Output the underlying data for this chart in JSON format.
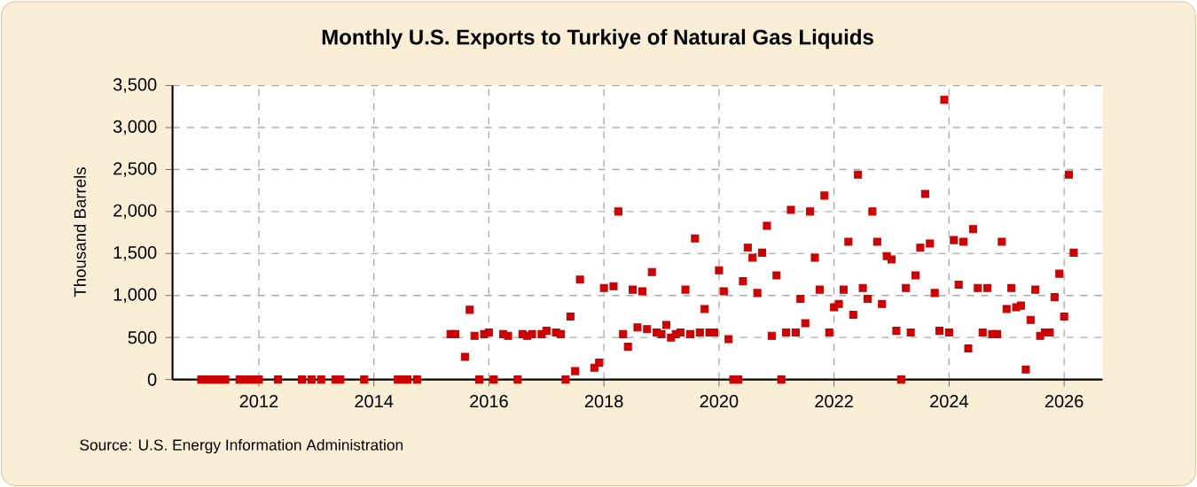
{
  "chart_data": {
    "type": "scatter",
    "title": "Monthly U.S. Exports to Turkiye of Natural Gas Liquids",
    "ylabel": "Thousand Barrels",
    "annotations": [
      "Source: U.S. Energy Information Administration"
    ],
    "x": [
      "2011-01",
      "2011-02",
      "2011-03",
      "2011-04",
      "2011-05",
      "2011-06",
      "2011-09",
      "2011-10",
      "2011-11",
      "2011-12",
      "2012-01",
      "2012-05",
      "2012-10",
      "2012-12",
      "2013-02",
      "2013-05",
      "2013-06",
      "2013-11",
      "2014-06",
      "2014-07",
      "2014-08",
      "2014-10",
      "2015-05",
      "2015-06",
      "2015-08",
      "2015-09",
      "2015-10",
      "2015-11",
      "2015-12",
      "2016-01",
      "2016-02",
      "2016-04",
      "2016-05",
      "2016-07",
      "2016-08",
      "2016-09",
      "2016-10",
      "2016-12",
      "2017-01",
      "2017-03",
      "2017-04",
      "2017-05",
      "2017-06",
      "2017-07",
      "2017-08",
      "2017-11",
      "2017-12",
      "2018-01",
      "2018-03",
      "2018-04",
      "2018-05",
      "2018-06",
      "2018-07",
      "2018-08",
      "2018-09",
      "2018-10",
      "2018-11",
      "2018-12",
      "2019-01",
      "2019-02",
      "2019-03",
      "2019-04",
      "2019-05",
      "2019-06",
      "2019-07",
      "2019-08",
      "2019-09",
      "2019-10",
      "2019-11",
      "2019-12",
      "2020-01",
      "2020-02",
      "2020-03",
      "2020-04",
      "2020-05",
      "2020-06",
      "2020-07",
      "2020-08",
      "2020-09",
      "2020-10",
      "2020-11",
      "2020-12",
      "2021-01",
      "2021-02",
      "2021-03",
      "2021-04",
      "2021-05",
      "2021-06",
      "2021-07",
      "2021-08",
      "2021-09",
      "2021-10",
      "2021-11",
      "2021-12",
      "2022-01",
      "2022-02",
      "2022-03",
      "2022-04",
      "2022-05",
      "2022-06",
      "2022-07",
      "2022-08",
      "2022-09",
      "2022-10",
      "2022-11",
      "2022-12",
      "2023-01",
      "2023-02",
      "2023-03",
      "2023-04",
      "2023-05",
      "2023-06",
      "2023-07",
      "2023-08",
      "2023-09",
      "2023-10",
      "2023-11",
      "2023-12",
      "2024-01",
      "2024-02",
      "2024-03",
      "2024-04",
      "2024-05",
      "2024-06",
      "2024-07",
      "2024-08",
      "2024-09",
      "2024-10",
      "2024-11",
      "2024-12",
      "2025-01",
      "2025-02",
      "2025-03",
      "2025-04",
      "2025-05",
      "2025-06",
      "2025-07",
      "2025-08",
      "2025-09",
      "2025-10",
      "2025-11",
      "2025-12",
      "2026-01",
      "2026-02",
      "2026-03"
    ],
    "values": [
      0,
      0,
      0,
      0,
      0,
      0,
      0,
      0,
      0,
      0,
      0,
      0,
      0,
      0,
      0,
      0,
      0,
      0,
      0,
      0,
      0,
      0,
      540,
      540,
      270,
      830,
      520,
      0,
      540,
      560,
      0,
      540,
      520,
      0,
      540,
      520,
      540,
      540,
      580,
      560,
      540,
      0,
      750,
      100,
      1190,
      140,
      200,
      1090,
      1110,
      2000,
      540,
      390,
      1070,
      620,
      1050,
      600,
      1280,
      560,
      540,
      650,
      500,
      540,
      560,
      1070,
      540,
      1680,
      560,
      840,
      560,
      560,
      1300,
      1050,
      480,
      0,
      0,
      1170,
      1570,
      1450,
      1030,
      1510,
      1830,
      520,
      1240,
      0,
      560,
      2020,
      560,
      960,
      670,
      2000,
      1450,
      1070,
      2190,
      560,
      860,
      900,
      1070,
      1640,
      770,
      2440,
      1090,
      960,
      2000,
      1640,
      900,
      1470,
      1430,
      580,
      0,
      1090,
      560,
      1240,
      1570,
      2210,
      1620,
      1030,
      580,
      3330,
      560,
      1660,
      1130,
      1640,
      370,
      1790,
      1090,
      560,
      1090,
      540,
      540,
      1640,
      840,
      1090,
      860,
      880,
      120,
      710,
      1070,
      520,
      560,
      560,
      980,
      1260,
      750,
      2440,
      1510
    ],
    "color": "#cc0000",
    "marker": "square",
    "grid": true,
    "xlim": [
      "2010-07",
      "2026-09"
    ],
    "xticks": [
      "2012",
      "2014",
      "2016",
      "2018",
      "2020",
      "2022",
      "2024",
      "2026"
    ],
    "ylim": [
      0,
      3500
    ],
    "yticks": [
      0,
      500,
      {
        "value": 1000,
        "label": "1,000"
      },
      {
        "value": 1500,
        "label": "1,500"
      },
      {
        "value": 2000,
        "label": "2,000"
      },
      {
        "value": 2500,
        "label": "2,500"
      },
      {
        "value": 3000,
        "label": "3,000"
      },
      {
        "value": 3500,
        "label": "3,500"
      }
    ]
  }
}
